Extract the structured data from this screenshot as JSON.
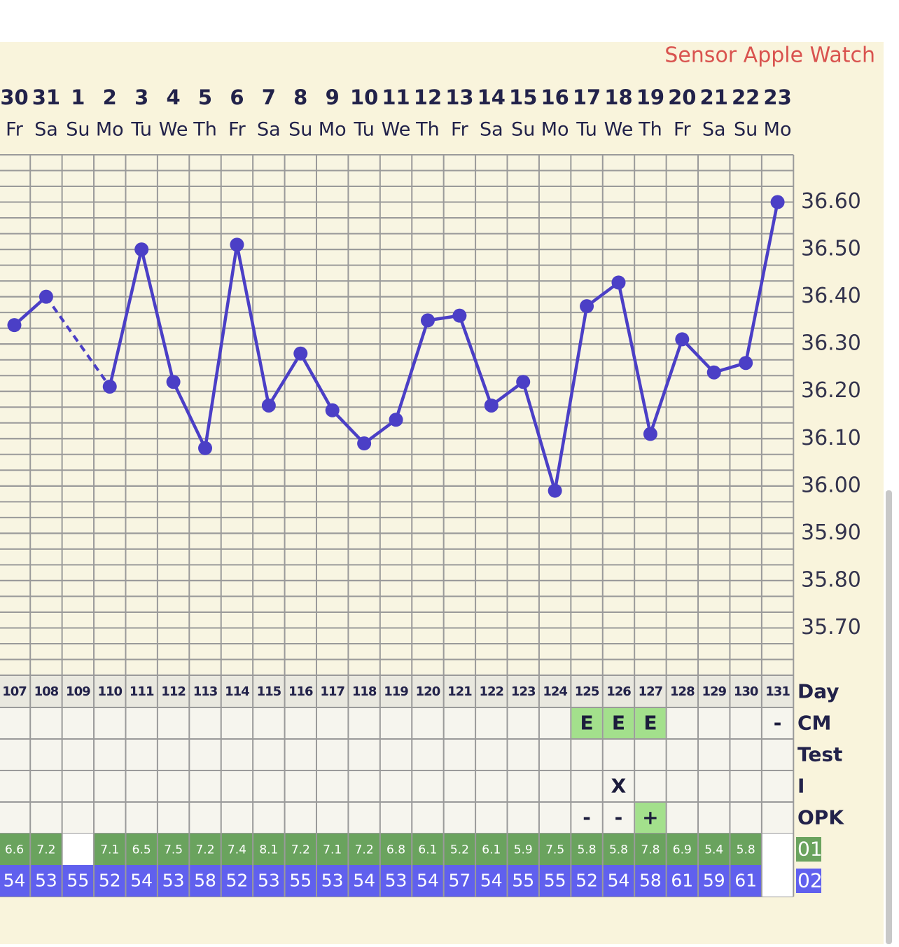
{
  "chart_data": {
    "type": "line",
    "annotation": "Sensor Apple Watch",
    "categories": [
      "30",
      "31",
      "1",
      "2",
      "3",
      "4",
      "5",
      "6",
      "7",
      "8",
      "9",
      "10",
      "11",
      "12",
      "13",
      "14",
      "15",
      "16",
      "17",
      "18",
      "19",
      "20",
      "21",
      "22",
      "23"
    ],
    "weekdays": [
      "Fr",
      "Sa",
      "Su",
      "Mo",
      "Tu",
      "We",
      "Th",
      "Fr",
      "Sa",
      "Su",
      "Mo",
      "Tu",
      "We",
      "Th",
      "Fr",
      "Sa",
      "Su",
      "Mo",
      "Tu",
      "We",
      "Th",
      "Fr",
      "Sa",
      "Su",
      "Mo"
    ],
    "values": [
      36.34,
      36.4,
      null,
      36.21,
      36.5,
      36.22,
      36.08,
      36.51,
      36.17,
      36.28,
      36.16,
      36.09,
      36.14,
      36.35,
      36.36,
      36.17,
      36.22,
      35.99,
      36.38,
      36.43,
      36.11,
      36.31,
      36.24,
      36.26,
      36.6
    ],
    "color": "#4b3fc6",
    "ylim": [
      35.6,
      36.7
    ],
    "yticks": [
      {
        "value": 35.7,
        "label": "35.70"
      },
      {
        "value": 35.8,
        "label": "35.80"
      },
      {
        "value": 35.9,
        "label": "35.90"
      },
      {
        "value": 36.0,
        "label": "36.00"
      },
      {
        "value": 36.1,
        "label": "36.10"
      },
      {
        "value": 36.2,
        "label": "36.20"
      },
      {
        "value": 36.3,
        "label": "36.30"
      },
      {
        "value": 36.4,
        "label": "36.40"
      },
      {
        "value": 36.5,
        "label": "36.50"
      },
      {
        "value": 36.6,
        "label": "36.60"
      }
    ],
    "grid": true
  },
  "table": {
    "labels": {
      "day": "Day",
      "cm": "CM",
      "test": "Test",
      "i": "I",
      "opk": "OPK",
      "r01": "01",
      "r02": "02"
    },
    "day": [
      107,
      108,
      109,
      110,
      111,
      112,
      113,
      114,
      115,
      116,
      117,
      118,
      119,
      120,
      121,
      122,
      123,
      124,
      125,
      126,
      127,
      128,
      129,
      130,
      131
    ],
    "cm": [
      null,
      null,
      null,
      null,
      null,
      null,
      null,
      null,
      null,
      null,
      null,
      null,
      null,
      null,
      null,
      null,
      null,
      null,
      "E",
      "E",
      "E",
      null,
      null,
      null,
      "-"
    ],
    "cm_colors": [
      null,
      null,
      null,
      null,
      null,
      null,
      null,
      null,
      null,
      null,
      null,
      null,
      null,
      null,
      null,
      null,
      null,
      null,
      "#a3e08c",
      "#a3e08c",
      "#a3e08c",
      null,
      null,
      null,
      null
    ],
    "test": [
      null,
      null,
      null,
      null,
      null,
      null,
      null,
      null,
      null,
      null,
      null,
      null,
      null,
      null,
      null,
      null,
      null,
      null,
      null,
      null,
      null,
      null,
      null,
      null,
      null
    ],
    "i": [
      null,
      null,
      null,
      null,
      null,
      null,
      null,
      null,
      null,
      null,
      null,
      null,
      null,
      null,
      null,
      null,
      null,
      null,
      null,
      "X",
      null,
      null,
      null,
      null,
      null
    ],
    "opk": [
      null,
      null,
      null,
      null,
      null,
      null,
      null,
      null,
      null,
      null,
      null,
      null,
      null,
      null,
      null,
      null,
      null,
      null,
      "-",
      "-",
      "+",
      null,
      null,
      null,
      null
    ],
    "opk_colors": [
      null,
      null,
      null,
      null,
      null,
      null,
      null,
      null,
      null,
      null,
      null,
      null,
      null,
      null,
      null,
      null,
      null,
      null,
      null,
      null,
      "#a3e08c",
      null,
      null,
      null,
      null
    ],
    "r01": [
      6.6,
      7.2,
      null,
      7.1,
      6.5,
      7.5,
      7.2,
      7.4,
      8.1,
      7.2,
      7.1,
      7.2,
      6.8,
      6.1,
      5.2,
      6.1,
      5.9,
      7.5,
      5.8,
      5.8,
      7.8,
      6.9,
      5.4,
      5.8,
      null
    ],
    "r01_color": "#6aa35e",
    "r02": [
      54,
      53,
      55,
      52,
      54,
      53,
      58,
      52,
      53,
      55,
      53,
      54,
      53,
      54,
      57,
      54,
      55,
      55,
      52,
      54,
      58,
      61,
      59,
      61,
      null
    ],
    "r02_color": "#6060ee"
  }
}
